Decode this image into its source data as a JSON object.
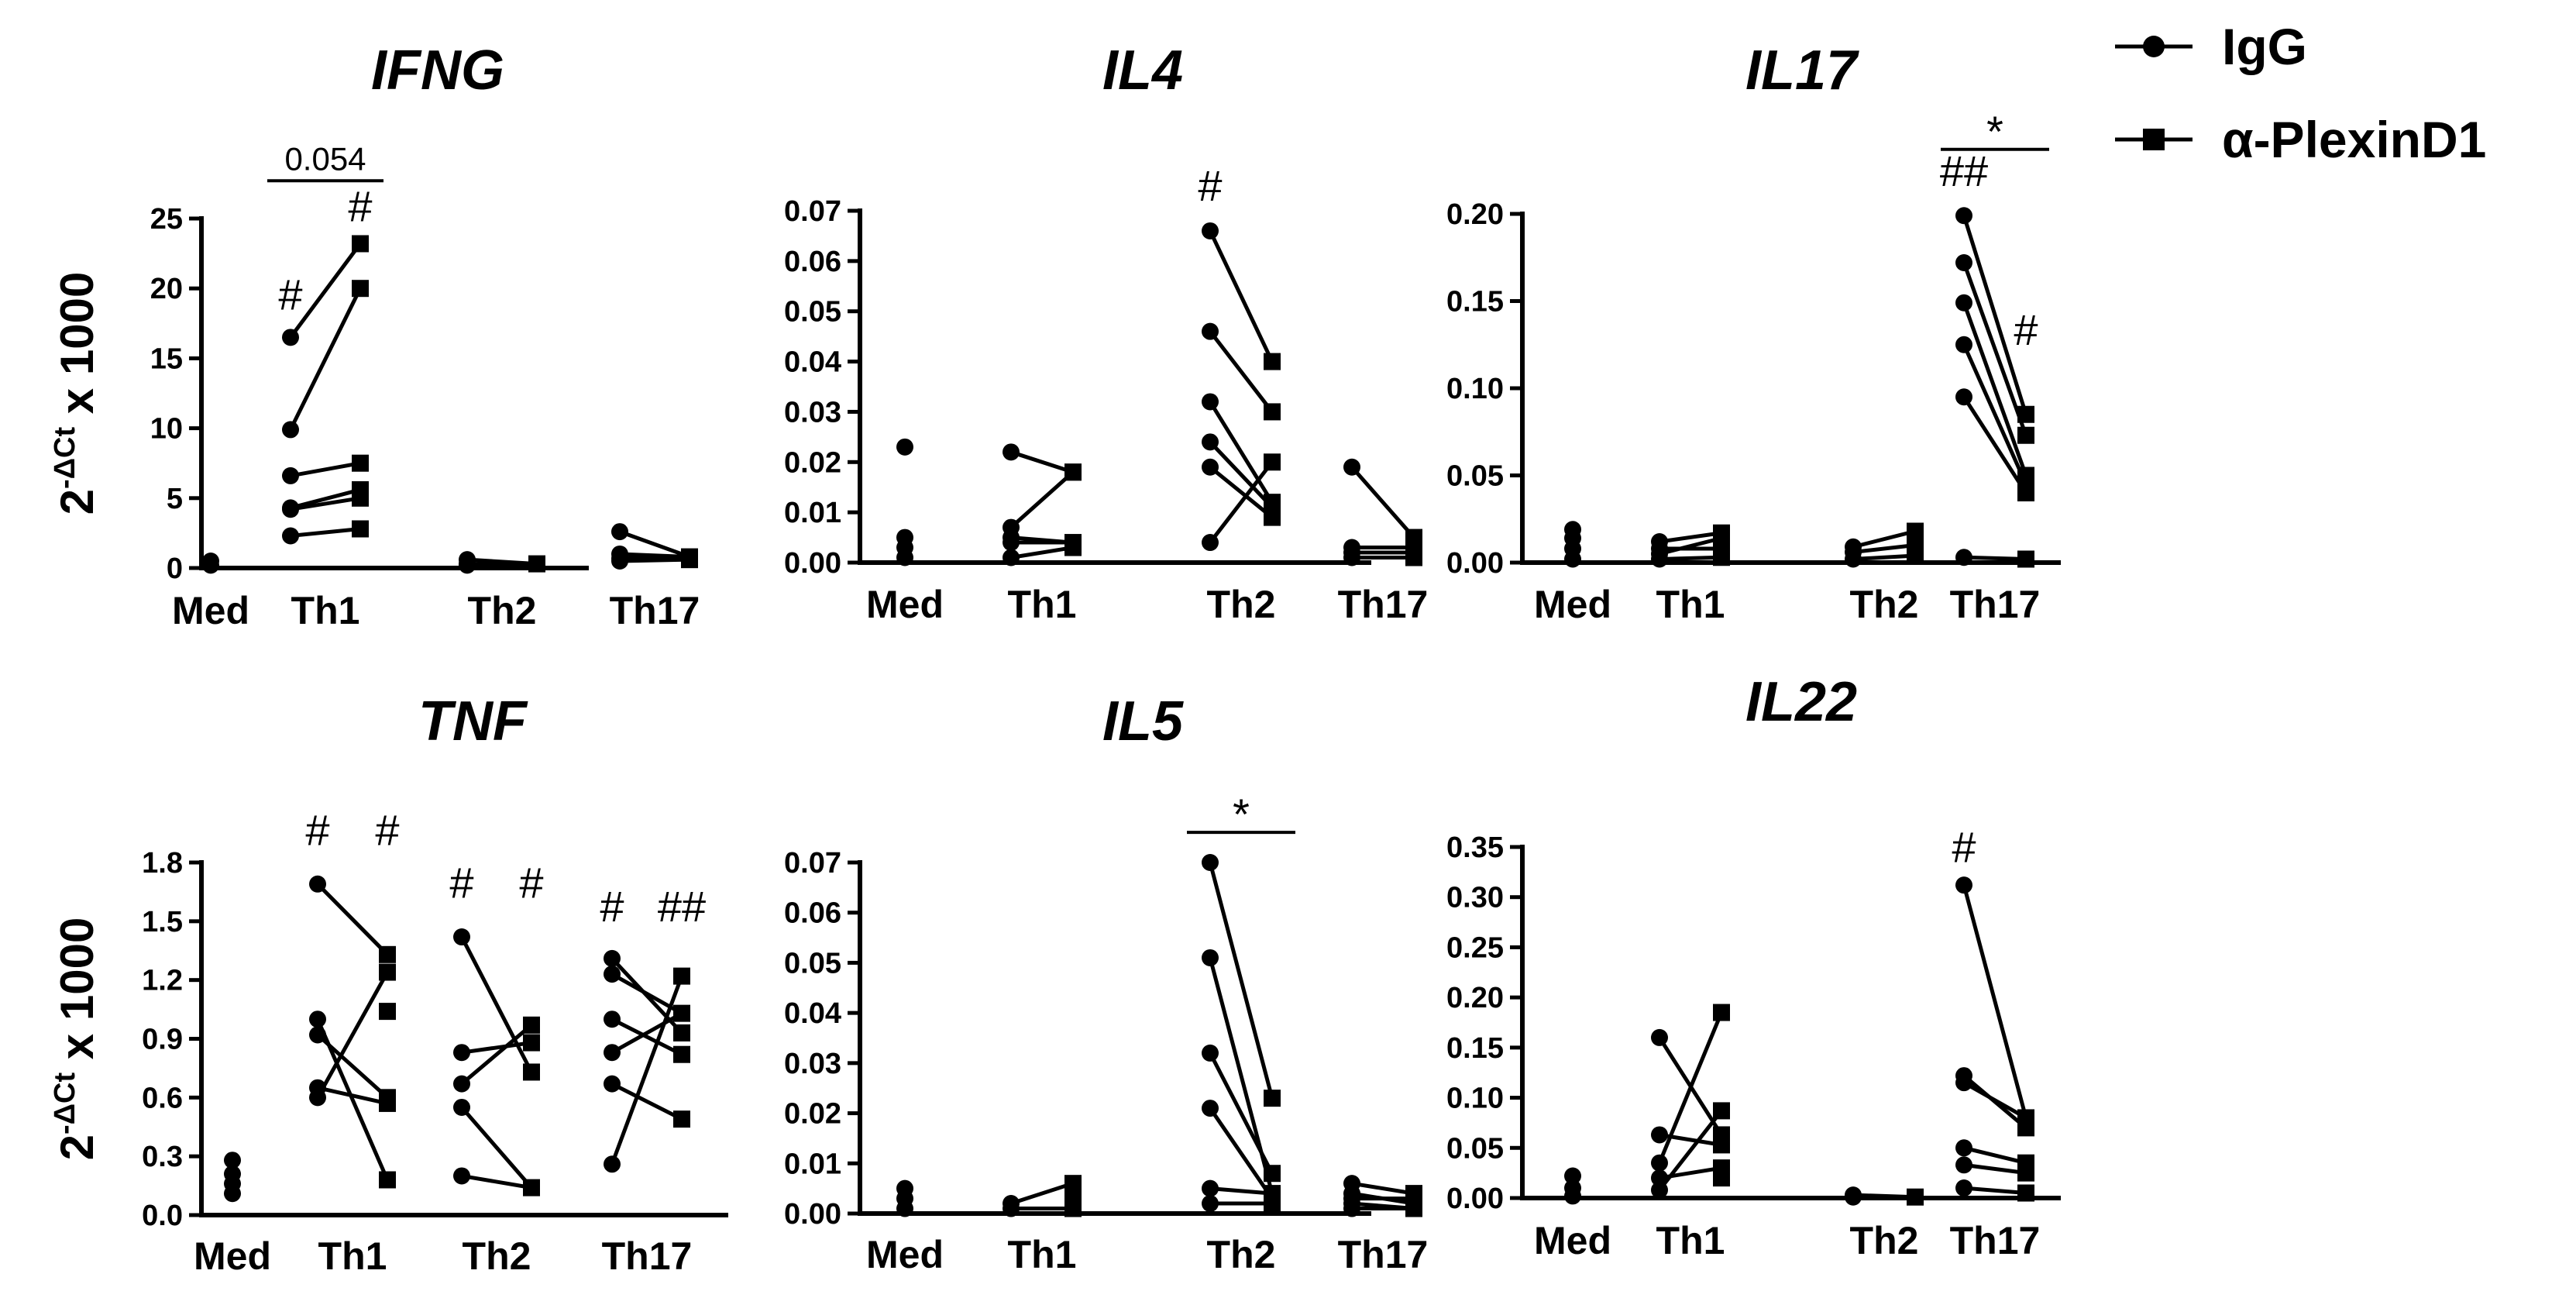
{
  "legend": {
    "igg": "IgG",
    "plexin": "α-PlexinD1"
  },
  "chart_data": [
    {
      "type": "scatter",
      "title": "IFNG",
      "ylabel": "2-ΔCt x 1000",
      "ylabel_base": "2",
      "ylabel_sup": "-ΔCt",
      "ylabel_rest": " x 1000",
      "ylim": [
        0,
        25
      ],
      "yticks": [
        "0",
        "5",
        "10",
        "15",
        "20",
        "25"
      ],
      "categories": [
        "Med",
        "Th1",
        "Th2",
        "Th17"
      ],
      "series": [
        {
          "name": "IgG",
          "values": {
            "Med": [
              0.2,
              0.5
            ],
            "Th1": [
              2.3,
              4.2,
              4.3,
              6.6,
              9.9,
              16.5
            ],
            "Th2": [
              0.2,
              0.3,
              0.6
            ],
            "Th17": [
              0.5,
              0.7,
              1.0,
              2.6
            ]
          }
        },
        {
          "name": "α-PlexinD1",
          "values": {
            "Th1": [
              2.8,
              5.0,
              5.6,
              7.5,
              20.0,
              23.2
            ],
            "Th2": [
              0.3
            ],
            "Th17": [
              0.6,
              0.7,
              0.8
            ]
          }
        }
      ],
      "pairs": [
        {
          "category": "Th1",
          "igg": [
            2.3,
            4.2,
            4.3,
            6.6,
            9.9,
            16.5
          ],
          "plexin": [
            2.8,
            5.0,
            5.6,
            7.5,
            20.0,
            23.2
          ]
        },
        {
          "category": "Th2",
          "igg": [
            0.2,
            0.3,
            0.6
          ],
          "plexin": [
            0.3,
            0.3,
            0.3
          ]
        },
        {
          "category": "Th17",
          "igg": [
            0.5,
            0.7,
            1.0,
            2.6
          ],
          "plexin": [
            0.6,
            0.7,
            0.8,
            0.8
          ]
        }
      ],
      "annotations": [
        {
          "text": "#",
          "category": "Th1",
          "series": "igg",
          "y": 18.5
        },
        {
          "text": "#",
          "category": "Th1",
          "series": "plexin",
          "y": 24.8
        }
      ],
      "brackets": [
        {
          "text": "0.054",
          "from": "Th1-igg",
          "to": "Th1-plexin",
          "y": 27.7
        }
      ]
    },
    {
      "type": "scatter",
      "title": "IL4",
      "ylim": [
        0,
        0.07
      ],
      "yticks": [
        "0.00",
        "0.01",
        "0.02",
        "0.03",
        "0.04",
        "0.05",
        "0.06",
        "0.07"
      ],
      "categories": [
        "Med",
        "Th1",
        "Th2",
        "Th17"
      ],
      "series": [
        {
          "name": "IgG",
          "values": {
            "Med": [
              0.001,
              0.003,
              0.005,
              0.023
            ],
            "Th1": [
              0.001,
              0.004,
              0.005,
              0.007,
              0.022
            ],
            "Th2": [
              0.004,
              0.019,
              0.024,
              0.032,
              0.046,
              0.066
            ],
            "Th17": [
              0.001,
              0.002,
              0.003,
              0.019
            ]
          }
        },
        {
          "name": "α-PlexinD1",
          "values": {
            "Th1": [
              0.003,
              0.004,
              0.018,
              0.018
            ],
            "Th2": [
              0.009,
              0.011,
              0.012,
              0.02,
              0.03,
              0.04
            ],
            "Th17": [
              0.001,
              0.002,
              0.003,
              0.005
            ]
          }
        }
      ],
      "pairs": [
        {
          "category": "Th1",
          "igg": [
            0.001,
            0.004,
            0.005,
            0.007,
            0.022
          ],
          "plexin": [
            0.003,
            0.004,
            0.004,
            0.018,
            0.018
          ]
        },
        {
          "category": "Th2",
          "igg": [
            0.004,
            0.019,
            0.024,
            0.032,
            0.046,
            0.066
          ],
          "plexin": [
            0.02,
            0.009,
            0.011,
            0.012,
            0.03,
            0.04
          ]
        },
        {
          "category": "Th17",
          "igg": [
            0.001,
            0.002,
            0.003,
            0.019
          ],
          "plexin": [
            0.001,
            0.002,
            0.003,
            0.005
          ]
        }
      ],
      "annotations": [
        {
          "text": "#",
          "category": "Th2",
          "series": "igg",
          "y": 0.072
        }
      ],
      "brackets": []
    },
    {
      "type": "scatter",
      "title": "IL17",
      "ylim": [
        0,
        0.2
      ],
      "yticks": [
        "0.00",
        "0.05",
        "0.10",
        "0.15",
        "0.20"
      ],
      "categories": [
        "Med",
        "Th1",
        "Th2",
        "Th17"
      ],
      "series": [
        {
          "name": "IgG",
          "values": {
            "Med": [
              0.002,
              0.008,
              0.014,
              0.019
            ],
            "Th1": [
              0.002,
              0.005,
              0.008,
              0.012
            ],
            "Th2": [
              0.002,
              0.006,
              0.009
            ],
            "Th17": [
              0.003,
              0.095,
              0.125,
              0.149,
              0.172,
              0.199
            ]
          }
        },
        {
          "name": "α-PlexinD1",
          "values": {
            "Th1": [
              0.003,
              0.008,
              0.014,
              0.017
            ],
            "Th2": [
              0.004,
              0.01,
              0.018
            ],
            "Th17": [
              0.002,
              0.04,
              0.045,
              0.05,
              0.073,
              0.085
            ]
          }
        }
      ],
      "pairs": [
        {
          "category": "Th1",
          "igg": [
            0.002,
            0.005,
            0.008,
            0.012
          ],
          "plexin": [
            0.003,
            0.014,
            0.008,
            0.017
          ]
        },
        {
          "category": "Th2",
          "igg": [
            0.002,
            0.006,
            0.009
          ],
          "plexin": [
            0.004,
            0.01,
            0.018
          ]
        },
        {
          "category": "Th17",
          "igg": [
            0.003,
            0.095,
            0.125,
            0.149,
            0.172,
            0.199
          ],
          "plexin": [
            0.002,
            0.04,
            0.045,
            0.05,
            0.073,
            0.085
          ]
        }
      ],
      "annotations": [
        {
          "text": "##",
          "category": "Th17",
          "series": "igg",
          "y": 0.216
        },
        {
          "text": "#",
          "category": "Th17",
          "series": "plexin",
          "y": 0.125
        }
      ],
      "brackets": [
        {
          "text": "*",
          "from": "Th17-igg",
          "to": "Th17-plexin",
          "y": 0.237
        }
      ]
    },
    {
      "type": "scatter",
      "title": "TNF",
      "ylabel": "2-ΔCt x 1000",
      "ylabel_base": "2",
      "ylabel_sup": "-ΔCt",
      "ylabel_rest": " x 1000",
      "ylim": [
        0,
        1.8
      ],
      "yticks": [
        "0.0",
        "0.3",
        "0.6",
        "0.9",
        "1.2",
        "1.5",
        "1.8"
      ],
      "categories": [
        "Med",
        "Th1",
        "Th2",
        "Th17"
      ],
      "series": [
        {
          "name": "IgG",
          "values": {
            "Med": [
              0.11,
              0.16,
              0.21,
              0.28
            ],
            "Th1": [
              0.6,
              0.65,
              0.92,
              1.0,
              1.69
            ],
            "Th2": [
              0.2,
              0.55,
              0.67,
              0.83,
              1.42
            ],
            "Th17": [
              0.26,
              0.67,
              0.83,
              1.0,
              1.23,
              1.31
            ]
          }
        },
        {
          "name": "α-PlexinD1",
          "values": {
            "Th1": [
              0.18,
              0.57,
              0.6,
              1.04,
              1.24,
              1.33
            ],
            "Th2": [
              0.14,
              0.73,
              0.88,
              0.97
            ],
            "Th17": [
              0.49,
              0.82,
              0.93,
              1.03,
              1.22
            ]
          }
        }
      ],
      "pairs": [
        {
          "category": "Th1",
          "igg": [
            0.6,
            0.65,
            0.92,
            1.0,
            1.69
          ],
          "plexin": [
            1.24,
            0.57,
            0.6,
            0.18,
            1.33
          ]
        },
        {
          "category": "Th2",
          "igg": [
            0.2,
            0.55,
            0.67,
            0.83,
            1.42
          ],
          "plexin": [
            0.14,
            0.14,
            0.97,
            0.88,
            0.73
          ]
        },
        {
          "category": "Th17",
          "igg": [
            0.26,
            0.67,
            0.83,
            1.0,
            1.23,
            1.31
          ],
          "plexin": [
            1.22,
            0.49,
            1.03,
            0.82,
            1.03,
            0.93
          ]
        }
      ],
      "annotations": [
        {
          "text": "#",
          "category": "Th1",
          "series": "igg",
          "y": 1.89
        },
        {
          "text": "#",
          "category": "Th1",
          "series": "plexin",
          "y": 1.89
        },
        {
          "text": "#",
          "category": "Th2",
          "series": "igg",
          "y": 1.62
        },
        {
          "text": "#",
          "category": "Th2",
          "series": "plexin",
          "y": 1.62
        },
        {
          "text": "#",
          "category": "Th17",
          "series": "igg",
          "y": 1.5
        },
        {
          "text": "##",
          "category": "Th17",
          "series": "plexin",
          "y": 1.5
        }
      ],
      "brackets": []
    },
    {
      "type": "scatter",
      "title": "IL5",
      "ylim": [
        0,
        0.07
      ],
      "yticks": [
        "0.00",
        "0.01",
        "0.02",
        "0.03",
        "0.04",
        "0.05",
        "0.06",
        "0.07"
      ],
      "categories": [
        "Med",
        "Th1",
        "Th2",
        "Th17"
      ],
      "series": [
        {
          "name": "IgG",
          "values": {
            "Med": [
              0.001,
              0.003,
              0.005
            ],
            "Th1": [
              0.001,
              0.002
            ],
            "Th2": [
              0.002,
              0.005,
              0.021,
              0.032,
              0.051,
              0.07
            ],
            "Th17": [
              0.001,
              0.002,
              0.003,
              0.004,
              0.006
            ]
          }
        },
        {
          "name": "α-PlexinD1",
          "values": {
            "Th1": [
              0.001,
              0.003,
              0.006
            ],
            "Th2": [
              0.002,
              0.003,
              0.004,
              0.008,
              0.023
            ],
            "Th17": [
              0.001,
              0.002,
              0.003,
              0.004
            ]
          }
        }
      ],
      "pairs": [
        {
          "category": "Th1",
          "igg": [
            0.001,
            0.002
          ],
          "plexin": [
            0.001,
            0.006
          ]
        },
        {
          "category": "Th2",
          "igg": [
            0.002,
            0.005,
            0.021,
            0.032,
            0.051,
            0.07
          ],
          "plexin": [
            0.002,
            0.004,
            0.003,
            0.008,
            0.004,
            0.023
          ]
        },
        {
          "category": "Th17",
          "igg": [
            0.001,
            0.002,
            0.003,
            0.004,
            0.006
          ],
          "plexin": [
            0.001,
            0.001,
            0.003,
            0.002,
            0.004
          ]
        }
      ],
      "annotations": [],
      "brackets": [
        {
          "text": "*",
          "from": "Th2-igg",
          "to": "Th2-plexin",
          "y": 0.076
        }
      ]
    },
    {
      "type": "scatter",
      "title": "IL22",
      "ylim": [
        0,
        0.35
      ],
      "yticks": [
        "0.00",
        "0.05",
        "0.10",
        "0.15",
        "0.20",
        "0.25",
        "0.30",
        "0.35"
      ],
      "categories": [
        "Med",
        "Th1",
        "Th2",
        "Th17"
      ],
      "series": [
        {
          "name": "IgG",
          "values": {
            "Med": [
              0.002,
              0.01,
              0.022
            ],
            "Th1": [
              0.008,
              0.02,
              0.035,
              0.063,
              0.16
            ],
            "Th2": [
              0.001,
              0.003
            ],
            "Th17": [
              0.01,
              0.033,
              0.05,
              0.115,
              0.122,
              0.312
            ]
          }
        },
        {
          "name": "α-PlexinD1",
          "values": {
            "Th1": [
              0.02,
              0.03,
              0.053,
              0.063,
              0.087,
              0.185
            ],
            "Th2": [
              0.001
            ],
            "Th17": [
              0.005,
              0.025,
              0.035,
              0.07,
              0.08
            ]
          }
        }
      ],
      "pairs": [
        {
          "category": "Th1",
          "igg": [
            0.008,
            0.02,
            0.035,
            0.063,
            0.16
          ],
          "plexin": [
            0.087,
            0.03,
            0.185,
            0.053,
            0.063
          ]
        },
        {
          "category": "Th2",
          "igg": [
            0.001,
            0.003
          ],
          "plexin": [
            0.001,
            0.001
          ]
        },
        {
          "category": "Th17",
          "igg": [
            0.01,
            0.033,
            0.05,
            0.115,
            0.122,
            0.312
          ],
          "plexin": [
            0.005,
            0.025,
            0.035,
            0.08,
            0.07,
            0.08
          ]
        }
      ],
      "annotations": [
        {
          "text": "#",
          "category": "Th17",
          "series": "igg",
          "y": 0.335
        }
      ],
      "brackets": []
    }
  ]
}
